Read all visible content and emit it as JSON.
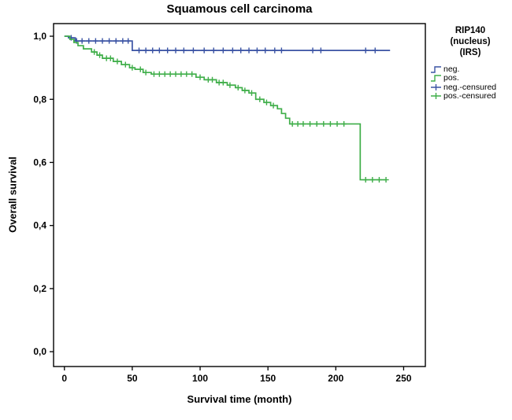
{
  "title": "Squamous cell carcinoma",
  "axes": {
    "x_label": "Survival time (month)",
    "y_label": "Overall survival",
    "x_ticks": [
      "0",
      "50",
      "100",
      "150",
      "200",
      "250"
    ],
    "x_tick_values": [
      0,
      50,
      100,
      150,
      200,
      250
    ],
    "y_ticks": [
      "0,0",
      "0,2",
      "0,4",
      "0,6",
      "0,8",
      "1,0"
    ],
    "y_tick_values": [
      0,
      0.2,
      0.4,
      0.6,
      0.8,
      1.0
    ]
  },
  "legend": {
    "title_lines": [
      "RIP140",
      "(nucleus)",
      "(IRS)"
    ],
    "items": [
      {
        "label": "neg.",
        "color": "#3a53a4",
        "type": "line"
      },
      {
        "label": "pos.",
        "color": "#3fae49",
        "type": "line"
      },
      {
        "label": "neg.-censured",
        "color": "#3a53a4",
        "type": "censor"
      },
      {
        "label": "pos.-censured",
        "color": "#3fae49",
        "type": "censor"
      }
    ]
  },
  "chart_data": {
    "type": "line",
    "subtype": "kaplan-meier-step",
    "title": "Squamous cell carcinoma",
    "xlabel": "Survival time (month)",
    "ylabel": "Overall survival",
    "xlim": [
      -8,
      266
    ],
    "ylim": [
      -0.047,
      1.04
    ],
    "grid": false,
    "legend_position": "right",
    "series": [
      {
        "name": "neg.",
        "color": "#3a53a4",
        "points": [
          [
            0,
            1.0
          ],
          [
            3,
            0.995
          ],
          [
            8,
            0.985
          ],
          [
            50,
            0.955
          ],
          [
            240,
            0.955
          ]
        ],
        "censored": [
          [
            5,
            0.995
          ],
          [
            9,
            0.985
          ],
          [
            13,
            0.985
          ],
          [
            18,
            0.985
          ],
          [
            23,
            0.985
          ],
          [
            28,
            0.985
          ],
          [
            33,
            0.985
          ],
          [
            38,
            0.985
          ],
          [
            43,
            0.985
          ],
          [
            47,
            0.985
          ],
          [
            55,
            0.955
          ],
          [
            60,
            0.955
          ],
          [
            65,
            0.955
          ],
          [
            70,
            0.955
          ],
          [
            76,
            0.955
          ],
          [
            82,
            0.955
          ],
          [
            88,
            0.955
          ],
          [
            95,
            0.955
          ],
          [
            103,
            0.955
          ],
          [
            110,
            0.955
          ],
          [
            117,
            0.955
          ],
          [
            124,
            0.955
          ],
          [
            130,
            0.955
          ],
          [
            136,
            0.955
          ],
          [
            142,
            0.955
          ],
          [
            148,
            0.955
          ],
          [
            155,
            0.955
          ],
          [
            160,
            0.955
          ],
          [
            183,
            0.955
          ],
          [
            189,
            0.955
          ],
          [
            222,
            0.955
          ],
          [
            229,
            0.955
          ]
        ]
      },
      {
        "name": "pos.",
        "color": "#3fae49",
        "points": [
          [
            0,
            1.0
          ],
          [
            4,
            0.99
          ],
          [
            7,
            0.98
          ],
          [
            10,
            0.97
          ],
          [
            14,
            0.96
          ],
          [
            20,
            0.95
          ],
          [
            24,
            0.94
          ],
          [
            28,
            0.93
          ],
          [
            36,
            0.92
          ],
          [
            42,
            0.91
          ],
          [
            48,
            0.9
          ],
          [
            52,
            0.895
          ],
          [
            58,
            0.885
          ],
          [
            64,
            0.88
          ],
          [
            97,
            0.87
          ],
          [
            103,
            0.862
          ],
          [
            112,
            0.853
          ],
          [
            120,
            0.845
          ],
          [
            126,
            0.837
          ],
          [
            131,
            0.828
          ],
          [
            136,
            0.82
          ],
          [
            141,
            0.8
          ],
          [
            147,
            0.79
          ],
          [
            152,
            0.78
          ],
          [
            157,
            0.77
          ],
          [
            160,
            0.755
          ],
          [
            163,
            0.74
          ],
          [
            166,
            0.722
          ],
          [
            218,
            0.722
          ],
          [
            218,
            0.545
          ],
          [
            237,
            0.545
          ]
        ],
        "censored": [
          [
            22,
            0.95
          ],
          [
            26,
            0.94
          ],
          [
            31,
            0.93
          ],
          [
            34,
            0.93
          ],
          [
            39,
            0.92
          ],
          [
            45,
            0.91
          ],
          [
            50,
            0.9
          ],
          [
            56,
            0.895
          ],
          [
            60,
            0.885
          ],
          [
            66,
            0.88
          ],
          [
            70,
            0.88
          ],
          [
            74,
            0.88
          ],
          [
            78,
            0.88
          ],
          [
            82,
            0.88
          ],
          [
            86,
            0.88
          ],
          [
            90,
            0.88
          ],
          [
            94,
            0.88
          ],
          [
            100,
            0.87
          ],
          [
            106,
            0.862
          ],
          [
            109,
            0.862
          ],
          [
            114,
            0.853
          ],
          [
            117,
            0.853
          ],
          [
            122,
            0.845
          ],
          [
            128,
            0.837
          ],
          [
            133,
            0.828
          ],
          [
            138,
            0.82
          ],
          [
            144,
            0.8
          ],
          [
            149,
            0.79
          ],
          [
            154,
            0.78
          ],
          [
            168,
            0.722
          ],
          [
            172,
            0.722
          ],
          [
            176,
            0.722
          ],
          [
            181,
            0.722
          ],
          [
            186,
            0.722
          ],
          [
            191,
            0.722
          ],
          [
            196,
            0.722
          ],
          [
            201,
            0.722
          ],
          [
            206,
            0.722
          ],
          [
            222,
            0.545
          ],
          [
            227,
            0.545
          ],
          [
            232,
            0.545
          ],
          [
            237,
            0.545
          ]
        ]
      }
    ]
  }
}
